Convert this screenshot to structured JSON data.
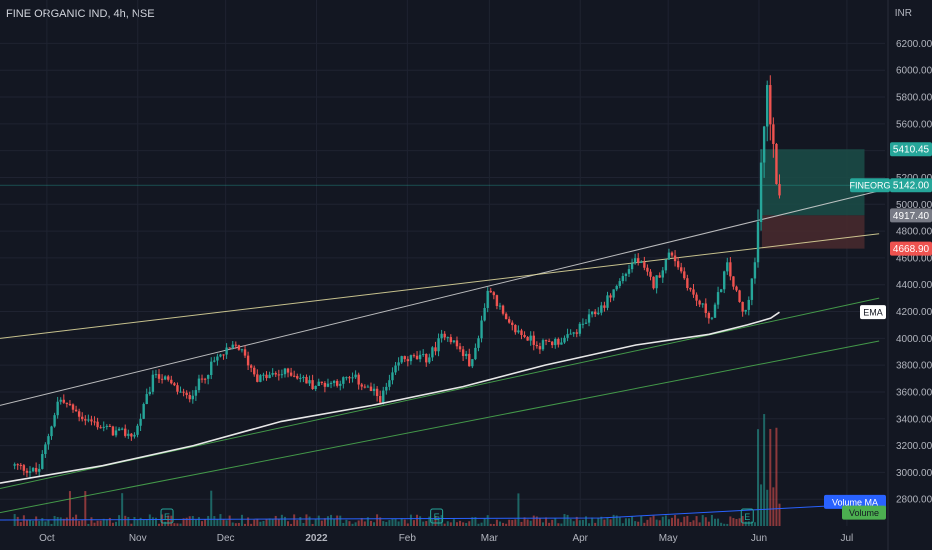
{
  "header": {
    "title": "FINE ORGANIC IND, 4h, NSE",
    "currency": "INR"
  },
  "colors": {
    "background": "#131722",
    "grid": "#1f2331",
    "up": "#26a69a",
    "down": "#ef5350",
    "ema": "#e8e8e8",
    "upper_channel": "#d7d7d7",
    "yellow_trend": "#e6dfa0",
    "green_trend": "#4caf50",
    "profit_zone": "#1b4d48",
    "loss_zone": "#4a2a2e",
    "volume_ma": "#2962ff"
  },
  "chart_data": {
    "type": "candlestick",
    "symbol": "FINEORG",
    "timeframe": "4h",
    "x_labels": [
      "Oct",
      "Nov",
      "Dec",
      "2022",
      "Feb",
      "Mar",
      "Apr",
      "May",
      "Jun",
      "Jul"
    ],
    "ylim": [
      2600,
      6300
    ],
    "y_ticks": [
      2800,
      3000,
      3200,
      3400,
      3600,
      3800,
      4000,
      4200,
      4400,
      4600,
      4800,
      5000,
      5200,
      5400,
      5600,
      5800,
      6000,
      6200
    ],
    "y_tick_labels": [
      "2800.00",
      "3000.00",
      "3200.00",
      "3400.00",
      "3600.00",
      "3800.00",
      "4000.00",
      "4200.00",
      "4400.00",
      "4600.00",
      "4800.00",
      "5000.00",
      "5200.00",
      "5400.00",
      "5600.00",
      "5800.00",
      "6000.00",
      "6200.00"
    ],
    "price_key_points": [
      {
        "date": "2021-09-20",
        "price": 3050
      },
      {
        "date": "2021-09-28",
        "price": 3000
      },
      {
        "date": "2021-10-05",
        "price": 3550
      },
      {
        "date": "2021-10-14",
        "price": 3400
      },
      {
        "date": "2021-10-24",
        "price": 3300
      },
      {
        "date": "2021-10-31",
        "price": 3280
      },
      {
        "date": "2021-11-07",
        "price": 3750
      },
      {
        "date": "2021-11-18",
        "price": 3550
      },
      {
        "date": "2021-11-28",
        "price": 3850
      },
      {
        "date": "2021-12-05",
        "price": 3950
      },
      {
        "date": "2021-12-12",
        "price": 3700
      },
      {
        "date": "2021-12-23",
        "price": 3750
      },
      {
        "date": "2021-12-31",
        "price": 3650
      },
      {
        "date": "2022-01-14",
        "price": 3700
      },
      {
        "date": "2022-01-23",
        "price": 3550
      },
      {
        "date": "2022-01-30",
        "price": 3850
      },
      {
        "date": "2022-02-08",
        "price": 3850
      },
      {
        "date": "2022-02-14",
        "price": 4050
      },
      {
        "date": "2022-02-23",
        "price": 3800
      },
      {
        "date": "2022-03-01",
        "price": 4400
      },
      {
        "date": "2022-03-07",
        "price": 4100
      },
      {
        "date": "2022-03-18",
        "price": 3950
      },
      {
        "date": "2022-03-28",
        "price": 4000
      },
      {
        "date": "2022-04-09",
        "price": 4250
      },
      {
        "date": "2022-04-20",
        "price": 4600
      },
      {
        "date": "2022-04-26",
        "price": 4400
      },
      {
        "date": "2022-05-02",
        "price": 4650
      },
      {
        "date": "2022-05-10",
        "price": 4300
      },
      {
        "date": "2022-05-16",
        "price": 4150
      },
      {
        "date": "2022-05-21",
        "price": 4550
      },
      {
        "date": "2022-05-27",
        "price": 4150
      },
      {
        "date": "2022-05-31",
        "price": 4600
      },
      {
        "date": "2022-06-02",
        "price": 5400
      },
      {
        "date": "2022-06-04",
        "price": 5900
      },
      {
        "date": "2022-06-06",
        "price": 5350
      },
      {
        "date": "2022-06-08",
        "price": 5142
      }
    ],
    "ema_points": [
      {
        "date": "2021-09-15",
        "price": 2920
      },
      {
        "date": "2021-10-20",
        "price": 3050
      },
      {
        "date": "2021-11-20",
        "price": 3200
      },
      {
        "date": "2021-12-20",
        "price": 3380
      },
      {
        "date": "2022-01-20",
        "price": 3500
      },
      {
        "date": "2022-02-20",
        "price": 3640
      },
      {
        "date": "2022-03-20",
        "price": 3800
      },
      {
        "date": "2022-04-20",
        "price": 3950
      },
      {
        "date": "2022-05-15",
        "price": 4030
      },
      {
        "date": "2022-05-28",
        "price": 4100
      },
      {
        "date": "2022-06-05",
        "price": 4150
      },
      {
        "date": "2022-06-08",
        "price": 4195
      }
    ],
    "trendlines": [
      {
        "name": "upper-channel",
        "start": {
          "date": "2021-09-15",
          "price": 3500
        },
        "end": {
          "date": "2022-07-12",
          "price": 5100
        },
        "color": "#d7d7d7"
      },
      {
        "name": "yellow-trend",
        "start": {
          "date": "2021-09-15",
          "price": 4000
        },
        "end": {
          "date": "2022-07-12",
          "price": 4780
        },
        "color": "#e6dfa0"
      },
      {
        "name": "green-trend-upper",
        "start": {
          "date": "2021-09-15",
          "price": 2880
        },
        "end": {
          "date": "2022-07-12",
          "price": 4300
        },
        "color": "#4caf50"
      },
      {
        "name": "green-trend-lower",
        "start": {
          "date": "2021-09-15",
          "price": 2700
        },
        "end": {
          "date": "2022-07-12",
          "price": 3980
        },
        "color": "#4caf50"
      }
    ],
    "position": {
      "start_date": "2022-06-02",
      "end_date": "2022-07-07",
      "target": 5410.45,
      "entry": 4917.4,
      "stop": 4668.9
    },
    "horizontal_levels": [
      5142.0
    ],
    "price_labels": [
      {
        "label": "5410.45",
        "price": 5410.45,
        "color": "#26a69a",
        "text_color": "#ffffff"
      },
      {
        "label": "5142.00",
        "price": 5142.0,
        "color": "#26a69a",
        "text_color": "#ffffff",
        "tag": "FINEORG"
      },
      {
        "label": "4917.40",
        "price": 4917.4,
        "color": "#787b86",
        "text_color": "#ffffff"
      },
      {
        "label": "4668.90",
        "price": 4668.9,
        "color": "#ef5350",
        "text_color": "#ffffff"
      }
    ],
    "legend": [
      {
        "label": "EMA",
        "price": 4195,
        "color": "#ffffff",
        "text_color": "#131722"
      },
      {
        "label": "Volume MA",
        "price": 2780,
        "color": "#2962ff",
        "text_color": "#ffffff"
      },
      {
        "label": "Volume",
        "price": 2700,
        "color": "#4caf50",
        "text_color": "#131722"
      }
    ],
    "earnings_markers": [
      {
        "date": "2021-11-11",
        "label": "E"
      },
      {
        "date": "2022-02-11",
        "label": "E"
      },
      {
        "date": "2022-05-28",
        "label": "E"
      }
    ]
  }
}
